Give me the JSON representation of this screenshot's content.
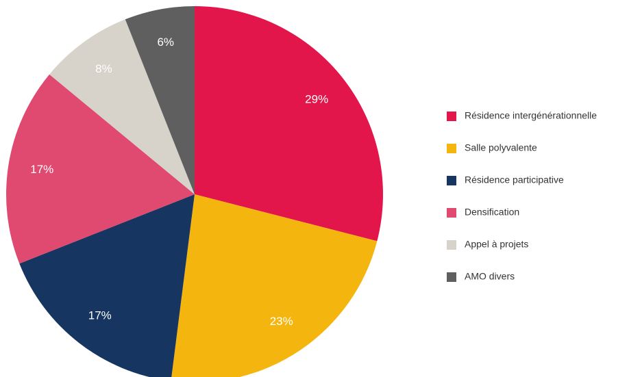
{
  "chart_data": {
    "type": "pie",
    "categories": [
      "Résidence intergénérationnelle",
      "Salle polyvalente",
      "Résidence participative",
      "Densification",
      "Appel à projets",
      "AMO divers"
    ],
    "values": [
      29,
      23,
      17,
      17,
      8,
      6
    ],
    "value_labels": [
      "29%",
      "23%",
      "17%",
      "17%",
      "8%",
      "6%"
    ],
    "colors": [
      "#e3164b",
      "#f5b50f",
      "#163561",
      "#e04a70",
      "#d7d2ca",
      "#5f5f5f"
    ],
    "legend": "right"
  }
}
